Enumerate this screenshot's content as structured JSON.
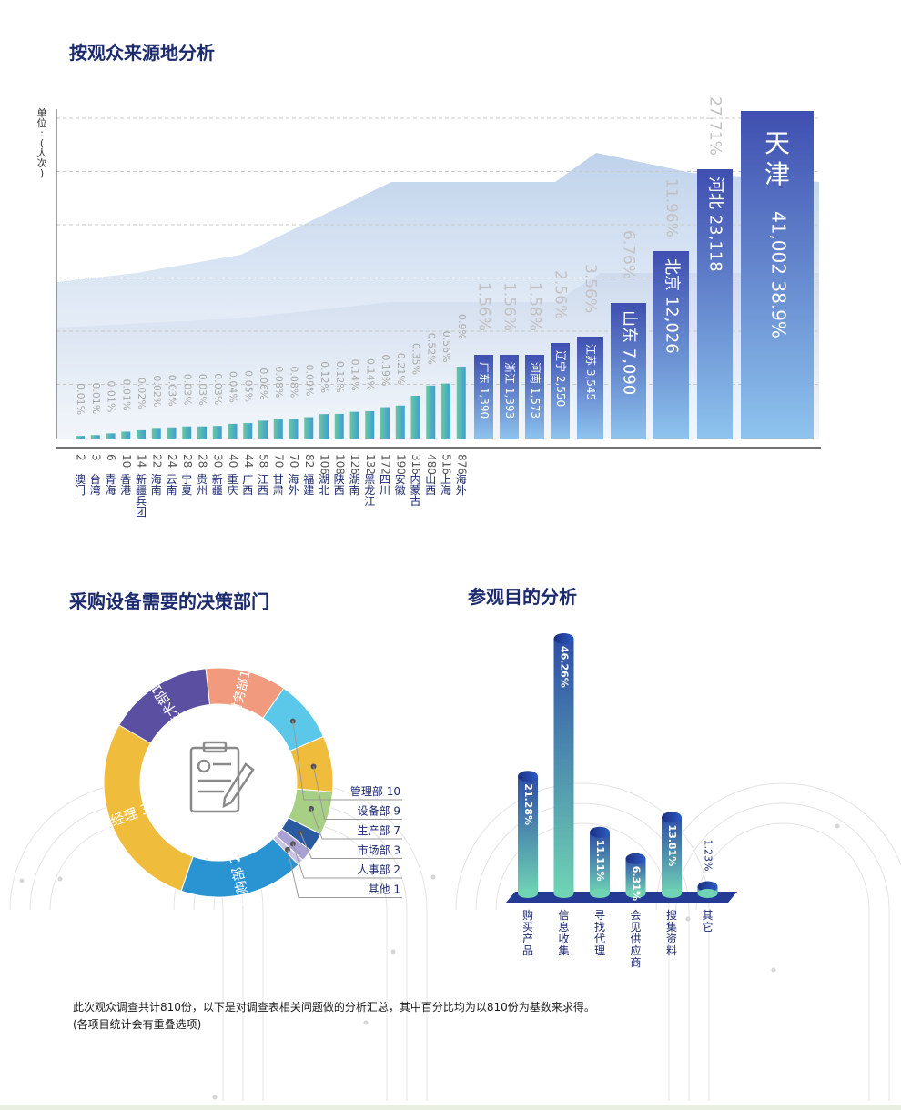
{
  "sections": {
    "origin_title": "按观众来源地分析",
    "dept_title": "采购设备需要的决策部门",
    "purpose_title": "参观目的分析"
  },
  "notes": {
    "line1": "此次观众调查共计810份，以下是对调查表相关问题做的分析汇总，其中百分比均为以810份为基数来求得。",
    "line2": "(各项目统计会有重叠选项)"
  },
  "chart_data": [
    {
      "type": "bar",
      "ylabel": "单位:(人次)",
      "small_bars": [
        {
          "name": "澳门",
          "count": "2",
          "value": 2,
          "pct": "0.01%"
        },
        {
          "name": "台湾",
          "count": "3",
          "value": 3,
          "pct": "0.01%"
        },
        {
          "name": "青海",
          "count": "6",
          "value": 6,
          "pct": "0.01%"
        },
        {
          "name": "香港",
          "count": "10",
          "value": 10,
          "pct": "0.01%"
        },
        {
          "name": "新疆兵团",
          "count": "14",
          "value": 14,
          "pct": "0.02%"
        },
        {
          "name": "海南",
          "count": "22",
          "value": 22,
          "pct": "0.02%"
        },
        {
          "name": "云南",
          "count": "24",
          "value": 24,
          "pct": "0.03%"
        },
        {
          "name": "宁夏",
          "count": "28",
          "value": 28,
          "pct": "0.03%"
        },
        {
          "name": "贵州",
          "count": "28",
          "value": 28,
          "pct": "0.03%"
        },
        {
          "name": "新疆",
          "count": "30",
          "value": 30,
          "pct": "0.03%"
        },
        {
          "name": "重庆",
          "count": "40",
          "value": 40,
          "pct": "0.04%"
        },
        {
          "name": "广西",
          "count": "44",
          "value": 44,
          "pct": "0.05%"
        },
        {
          "name": "江西",
          "count": "58",
          "value": 58,
          "pct": "0.06%"
        },
        {
          "name": "甘肃",
          "count": "70",
          "value": 70,
          "pct": "0.08%"
        },
        {
          "name": "海外",
          "count": "70",
          "value": 70,
          "pct": "0.08%"
        },
        {
          "name": "福建",
          "count": "82",
          "value": 82,
          "pct": "0.09%"
        },
        {
          "name": "湖北",
          "count": "106",
          "value": 106,
          "pct": "0.12%"
        },
        {
          "name": "陕西",
          "count": "108",
          "value": 108,
          "pct": "0.12%"
        },
        {
          "name": "湖南",
          "count": "126",
          "value": 126,
          "pct": "0.14%"
        },
        {
          "name": "黑龙江",
          "count": "132",
          "value": 132,
          "pct": "0.14%"
        },
        {
          "name": "四川",
          "count": "172",
          "value": 172,
          "pct": "0.19%"
        },
        {
          "name": "安徽",
          "count": "190",
          "value": 190,
          "pct": "0.21%"
        },
        {
          "name": "内蒙古",
          "count": "316",
          "value": 316,
          "pct": "0.35%"
        },
        {
          "name": "山西",
          "count": "480",
          "value": 480,
          "pct": "0.52%"
        },
        {
          "name": "上海",
          "count": "516",
          "value": 516,
          "pct": "0.56%"
        },
        {
          "name": "海外",
          "count": "876",
          "value": 876,
          "pct": "0.9%"
        }
      ],
      "large_bars": [
        {
          "name": "广东",
          "count": "1,390",
          "value": 1390,
          "pct": "1.56%"
        },
        {
          "name": "浙江",
          "count": "1,393",
          "value": 1393,
          "pct": "1.56%"
        },
        {
          "name": "河南",
          "count": "1,573",
          "value": 1573,
          "pct": "1.58%"
        },
        {
          "name": "辽宁",
          "count": "2,550",
          "value": 2550,
          "pct": "2.56%"
        },
        {
          "name": "江苏",
          "count": "3,545",
          "value": 3545,
          "pct": "3.56%"
        },
        {
          "name": "山东",
          "count": "7,090",
          "value": 7090,
          "pct": "6.76%"
        },
        {
          "name": "北京",
          "count": "12,026",
          "value": 12026,
          "pct": "11.96%"
        },
        {
          "name": "河北",
          "count": "23,118",
          "value": 23118,
          "pct": "27.71%"
        },
        {
          "name": "天津",
          "count": "41,002",
          "value": 41002,
          "pct": "38.9%"
        }
      ]
    },
    {
      "type": "pie",
      "slices": [
        {
          "label": "技术部",
          "value": 17,
          "color": "#5a4fa0"
        },
        {
          "label": "财务部",
          "value": 13,
          "color": "#f29a7e"
        },
        {
          "label": "管理部",
          "value": 10,
          "color": "#5bc8ea"
        },
        {
          "label": "设备部",
          "value": 9,
          "color": "#f0bc3c"
        },
        {
          "label": "生产部",
          "value": 7,
          "color": "#a7d084"
        },
        {
          "label": "市场部",
          "value": 3,
          "color": "#2a5aa0"
        },
        {
          "label": "人事部",
          "value": 2,
          "color": "#a9a0d4"
        },
        {
          "label": "其他",
          "value": 1,
          "color": "#c9c2e4"
        },
        {
          "label": "采购部",
          "value": 20,
          "color": "#2a93d2"
        },
        {
          "label": "总经理",
          "value": 32,
          "color": "#f0bc3c"
        }
      ],
      "ring_labels": {
        "tech": "技术部17",
        "finance": "财务部13",
        "purchase": "采购部 20",
        "gm": "总经理 32"
      },
      "callouts": [
        "管理部 10",
        "设备部 9",
        "生产部 7",
        "市场部 3",
        "人事部 2",
        "其他 1"
      ]
    },
    {
      "type": "bar",
      "categories": [
        "购买产品",
        "信息收集",
        "寻找代理",
        "会见供应商",
        "搜集资料",
        "其它"
      ],
      "values": [
        21.28,
        46.26,
        11.11,
        6.31,
        13.81,
        1.23
      ],
      "labels": [
        "21.28%",
        "46.26%",
        "11.11%",
        "6.31%",
        "13.81%",
        "1.23%"
      ]
    }
  ]
}
